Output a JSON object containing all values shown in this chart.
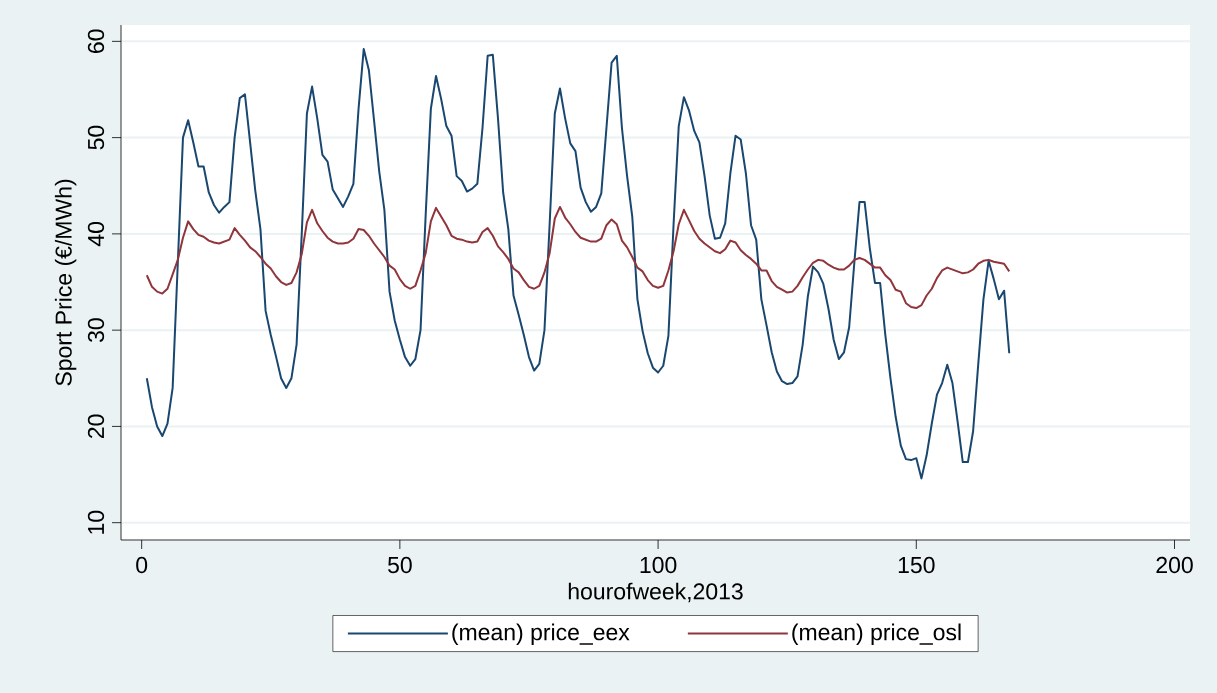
{
  "chart_data": {
    "type": "line",
    "xlabel": "hourofweek,2013",
    "ylabel": "Sport Price (€/MWh)",
    "x": [
      1,
      2,
      3,
      4,
      5,
      6,
      7,
      8,
      9,
      10,
      11,
      12,
      13,
      14,
      15,
      16,
      17,
      18,
      19,
      20,
      21,
      22,
      23,
      24,
      25,
      26,
      27,
      28,
      29,
      30,
      31,
      32,
      33,
      34,
      35,
      36,
      37,
      38,
      39,
      40,
      41,
      42,
      43,
      44,
      45,
      46,
      47,
      48,
      49,
      50,
      51,
      52,
      53,
      54,
      55,
      56,
      57,
      58,
      59,
      60,
      61,
      62,
      63,
      64,
      65,
      66,
      67,
      68,
      69,
      70,
      71,
      72,
      73,
      74,
      75,
      76,
      77,
      78,
      79,
      80,
      81,
      82,
      83,
      84,
      85,
      86,
      87,
      88,
      89,
      90,
      91,
      92,
      93,
      94,
      95,
      96,
      97,
      98,
      99,
      100,
      101,
      102,
      103,
      104,
      105,
      106,
      107,
      108,
      109,
      110,
      111,
      112,
      113,
      114,
      115,
      116,
      117,
      118,
      119,
      120,
      121,
      122,
      123,
      124,
      125,
      126,
      127,
      128,
      129,
      130,
      131,
      132,
      133,
      134,
      135,
      136,
      137,
      138,
      139,
      140,
      141,
      142,
      143,
      144,
      145,
      146,
      147,
      148,
      149,
      150,
      151,
      152,
      153,
      154,
      155,
      156,
      157,
      158,
      159,
      160,
      161,
      162,
      163,
      164,
      165,
      166,
      167,
      168
    ],
    "series": [
      {
        "name": "(mean) price_eex",
        "color": "#1a476f",
        "values": [
          25,
          22,
          20,
          19,
          20.3,
          24,
          37,
          50,
          51.8,
          49.5,
          47,
          47,
          44.3,
          43,
          42.2,
          42.8,
          43.3,
          50,
          54.1,
          54.5,
          49.5,
          44.5,
          40.5,
          32,
          29.5,
          27.3,
          25,
          24,
          25,
          28.5,
          40,
          52.5,
          55.3,
          52,
          48.2,
          47.5,
          44.6,
          43.7,
          42.8,
          43.9,
          45.2,
          53,
          59.2,
          57,
          51.8,
          46.5,
          42.5,
          34,
          31,
          29,
          27.2,
          26.3,
          27,
          30,
          42,
          53,
          56.4,
          54,
          51.2,
          50.2,
          46,
          45.5,
          44.4,
          44.7,
          45.2,
          51,
          58.5,
          58.6,
          52,
          44.3,
          40.5,
          33.6,
          31.6,
          29.5,
          27.2,
          25.8,
          26.5,
          30,
          41,
          52.5,
          55.1,
          52,
          49.4,
          48.6,
          44.8,
          43.3,
          42.3,
          42.8,
          44.2,
          51,
          57.8,
          58.5,
          51,
          46,
          41.8,
          33.2,
          29.9,
          27.6,
          26.1,
          25.6,
          26.3,
          29.4,
          41,
          51.2,
          54.2,
          52.8,
          50.7,
          49.5,
          46,
          41.9,
          39.5,
          39.6,
          41.1,
          46.3,
          50.2,
          49.8,
          46.3,
          40.9,
          39.4,
          33.2,
          30.5,
          27.7,
          25.7,
          24.7,
          24.4,
          24.5,
          25.2,
          28.5,
          33.5,
          36.6,
          36,
          34.8,
          32.2,
          29,
          27,
          27.7,
          30.3,
          37,
          43.3,
          43.3,
          38.5,
          34.9,
          34.9,
          29.5,
          25,
          21,
          18,
          16.6,
          16.5,
          16.7,
          14.6,
          17,
          20.3,
          23.3,
          24.5,
          26.4,
          24.5,
          20.5,
          16.3,
          16.3,
          19.5,
          26.5,
          33.2,
          37.2,
          35.3,
          33.2,
          34.1,
          27.6
        ]
      },
      {
        "name": "(mean) price_osl",
        "color": "#90353b",
        "values": [
          35.7,
          34.5,
          34,
          33.8,
          34.3,
          35.8,
          37.3,
          39.6,
          41.3,
          40.5,
          39.9,
          39.7,
          39.3,
          39.1,
          39,
          39.2,
          39.4,
          40.6,
          39.9,
          39.3,
          38.6,
          38.2,
          37.6,
          36.9,
          36.4,
          35.6,
          35,
          34.7,
          34.9,
          36,
          37.9,
          41.2,
          42.5,
          41.1,
          40.3,
          39.6,
          39.2,
          39,
          39,
          39.1,
          39.5,
          40.5,
          40.4,
          39.8,
          39,
          38.3,
          37.6,
          36.7,
          36.3,
          35.3,
          34.6,
          34.3,
          34.6,
          36.2,
          38,
          41.3,
          42.7,
          41.8,
          40.9,
          39.8,
          39.5,
          39.4,
          39.2,
          39.1,
          39.2,
          40.2,
          40.6,
          39.8,
          38.7,
          38.1,
          37.4,
          36.4,
          36,
          35.2,
          34.5,
          34.3,
          34.6,
          36,
          38,
          41.6,
          42.8,
          41.7,
          41,
          40.2,
          39.6,
          39.4,
          39.2,
          39.2,
          39.5,
          40.9,
          41.5,
          41,
          39.3,
          38.6,
          37.6,
          36.5,
          36.1,
          35.2,
          34.6,
          34.4,
          34.6,
          36.2,
          38.2,
          41,
          42.5,
          41.4,
          40.3,
          39.5,
          39,
          38.6,
          38.2,
          38,
          38.4,
          39.3,
          39.1,
          38.3,
          37.8,
          37.4,
          36.9,
          36.2,
          36.2,
          35.1,
          34.5,
          34.2,
          33.9,
          34,
          34.6,
          35.5,
          36.3,
          37,
          37.3,
          37.2,
          36.8,
          36.5,
          36.3,
          36.3,
          36.7,
          37.3,
          37.5,
          37.3,
          36.9,
          36.5,
          36.5,
          35.7,
          35.2,
          34.2,
          34,
          32.8,
          32.4,
          32.3,
          32.6,
          33.6,
          34.3,
          35.4,
          36.2,
          36.5,
          36.3,
          36.1,
          35.9,
          36,
          36.3,
          36.9,
          37.2,
          37.3,
          37.1,
          37,
          36.9,
          36.1
        ]
      }
    ],
    "xlim": [
      -4,
      203
    ],
    "ylim": [
      8.2,
      61.7
    ],
    "xticks": [
      0,
      50,
      100,
      150,
      200
    ],
    "yticks": [
      10,
      20,
      30,
      40,
      50,
      60
    ],
    "grid": "y",
    "legend": "bottom",
    "line_style": "solid",
    "marker": "none"
  }
}
